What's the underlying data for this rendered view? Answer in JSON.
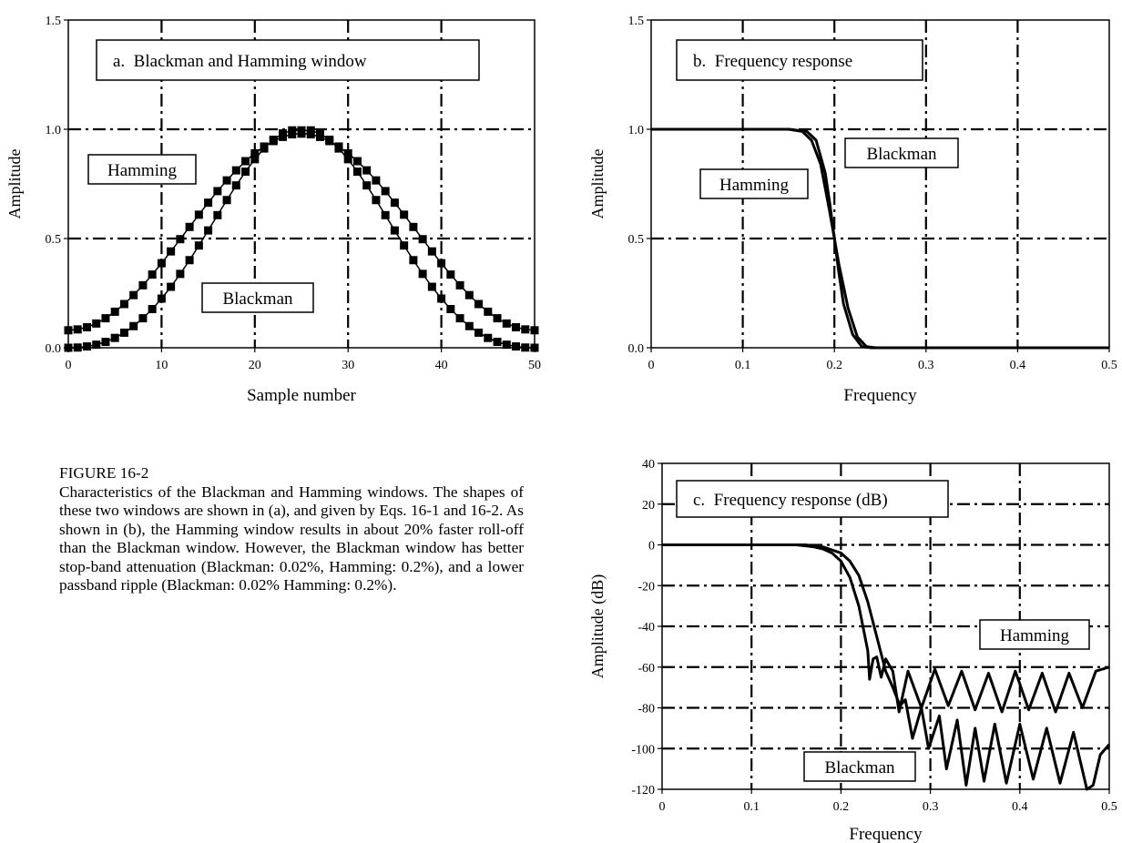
{
  "figure": {
    "number": "FIGURE 16-2",
    "caption": "Characteristics of the Blackman and Hamming windows.  The shapes of these two windows are shown in (a), and given by Eqs. 16-1 and 16-2.  As shown in (b), the Hamming window results in about 20% faster roll-off than the Blackman window.  However, the Blackman window has better stop-band attenuation (Blackman: 0.02%, Hamming: 0.2%), and a lower passband ripple (Blackman: 0.02% Hamming: 0.2%)."
  },
  "chart_data": [
    {
      "id": "a",
      "type": "scatter",
      "title": "a.  Blackman and Hamming window",
      "xlabel": "Sample number",
      "ylabel": "Amplitude",
      "xlim": [
        0,
        50
      ],
      "ylim": [
        0,
        1.5
      ],
      "xticks": [
        "0",
        "10",
        "20",
        "30",
        "40",
        "50"
      ],
      "yticks": [
        "0.0",
        "0.5",
        "1.0",
        "1.5"
      ],
      "grid": true,
      "series": [
        {
          "name": "Hamming",
          "x": [
            0,
            1,
            2,
            3,
            4,
            5,
            6,
            7,
            8,
            9,
            10,
            11,
            12,
            13,
            14,
            15,
            16,
            17,
            18,
            19,
            20,
            21,
            22,
            23,
            24,
            25,
            26,
            27,
            28,
            29,
            30,
            31,
            32,
            33,
            34,
            35,
            36,
            37,
            38,
            39,
            40,
            41,
            42,
            43,
            44,
            45,
            46,
            47,
            48,
            49,
            50
          ],
          "y": [
            0.08,
            0.084,
            0.094,
            0.111,
            0.135,
            0.165,
            0.2,
            0.241,
            0.286,
            0.335,
            0.387,
            0.441,
            0.497,
            0.553,
            0.609,
            0.664,
            0.717,
            0.766,
            0.812,
            0.854,
            0.89,
            0.921,
            0.946,
            0.965,
            0.977,
            0.98,
            0.977,
            0.965,
            0.946,
            0.921,
            0.89,
            0.854,
            0.812,
            0.766,
            0.717,
            0.664,
            0.609,
            0.553,
            0.497,
            0.441,
            0.387,
            0.335,
            0.286,
            0.241,
            0.2,
            0.165,
            0.135,
            0.111,
            0.094,
            0.084,
            0.08
          ]
        },
        {
          "name": "Blackman",
          "x": [
            0,
            1,
            2,
            3,
            4,
            5,
            6,
            7,
            8,
            9,
            10,
            11,
            12,
            13,
            14,
            15,
            16,
            17,
            18,
            19,
            20,
            21,
            22,
            23,
            24,
            25,
            26,
            27,
            28,
            29,
            30,
            31,
            32,
            33,
            34,
            35,
            36,
            37,
            38,
            39,
            40,
            41,
            42,
            43,
            44,
            45,
            46,
            47,
            48,
            49,
            50
          ],
          "y": [
            0.0,
            0.001,
            0.006,
            0.014,
            0.027,
            0.045,
            0.069,
            0.099,
            0.135,
            0.177,
            0.225,
            0.279,
            0.338,
            0.401,
            0.468,
            0.537,
            0.607,
            0.676,
            0.743,
            0.806,
            0.863,
            0.912,
            0.952,
            0.981,
            0.995,
            0.995,
            0.995,
            0.981,
            0.952,
            0.912,
            0.863,
            0.806,
            0.743,
            0.676,
            0.607,
            0.537,
            0.468,
            0.401,
            0.338,
            0.279,
            0.225,
            0.177,
            0.135,
            0.099,
            0.069,
            0.045,
            0.027,
            0.014,
            0.006,
            0.001,
            0.0
          ]
        }
      ]
    },
    {
      "id": "b",
      "type": "line",
      "title": "b.  Frequency response",
      "xlabel": "Frequency",
      "ylabel": "Amplitude",
      "xlim": [
        0,
        0.5
      ],
      "ylim": [
        0,
        1.5
      ],
      "xticks": [
        "0",
        "0.1",
        "0.2",
        "0.3",
        "0.4",
        "0.5"
      ],
      "yticks": [
        "0.0",
        "0.5",
        "1.0",
        "1.5"
      ],
      "grid": true,
      "series": [
        {
          "name": "Hamming",
          "x": [
            0,
            0.1,
            0.15,
            0.17,
            0.18,
            0.19,
            0.195,
            0.2,
            0.205,
            0.21,
            0.22,
            0.23,
            0.24,
            0.3,
            0.4,
            0.5
          ],
          "y": [
            1.0,
            1.0,
            1.0,
            0.99,
            0.95,
            0.8,
            0.66,
            0.5,
            0.34,
            0.2,
            0.06,
            0.005,
            0.0,
            0.0,
            0.0,
            0.0
          ]
        },
        {
          "name": "Blackman",
          "x": [
            0,
            0.1,
            0.15,
            0.165,
            0.175,
            0.185,
            0.195,
            0.2,
            0.205,
            0.215,
            0.225,
            0.235,
            0.245,
            0.3,
            0.4,
            0.5
          ],
          "y": [
            1.0,
            1.0,
            1.0,
            0.99,
            0.95,
            0.84,
            0.62,
            0.5,
            0.38,
            0.18,
            0.05,
            0.005,
            0.0,
            0.0,
            0.0,
            0.0
          ]
        }
      ]
    },
    {
      "id": "c",
      "type": "line",
      "title": "c.  Frequency response (dB)",
      "xlabel": "Frequency",
      "ylabel": "Amplitude (dB)",
      "xlim": [
        0,
        0.5
      ],
      "ylim": [
        -120,
        40
      ],
      "xticks": [
        "0",
        "0.1",
        "0.2",
        "0.3",
        "0.4",
        "0.5"
      ],
      "yticks": [
        "-120",
        "-100",
        "-80",
        "-60",
        "-40",
        "-20",
        "0",
        "20",
        "40"
      ],
      "grid": true,
      "series": [
        {
          "name": "Hamming",
          "x": [
            0,
            0.15,
            0.17,
            0.18,
            0.19,
            0.2,
            0.21,
            0.22,
            0.23,
            0.232,
            0.236,
            0.24,
            0.245,
            0.25,
            0.258,
            0.265,
            0.275,
            0.29,
            0.305,
            0.32,
            0.335,
            0.35,
            0.365,
            0.38,
            0.395,
            0.41,
            0.425,
            0.44,
            0.455,
            0.47,
            0.485,
            0.5
          ],
          "y": [
            0,
            0,
            -1,
            -2,
            -4,
            -8,
            -16,
            -30,
            -52,
            -66,
            -56,
            -55,
            -65,
            -56,
            -62,
            -82,
            -62,
            -80,
            -61,
            -79,
            -62,
            -81,
            -63,
            -82,
            -62,
            -81,
            -63,
            -82,
            -63,
            -80,
            -62,
            -60
          ]
        },
        {
          "name": "Blackman",
          "x": [
            0,
            0.16,
            0.18,
            0.2,
            0.21,
            0.22,
            0.23,
            0.24,
            0.25,
            0.258,
            0.266,
            0.272,
            0.28,
            0.29,
            0.298,
            0.31,
            0.318,
            0.33,
            0.34,
            0.35,
            0.36,
            0.372,
            0.385,
            0.4,
            0.415,
            0.43,
            0.445,
            0.46,
            0.475,
            0.482,
            0.49,
            0.5
          ],
          "y": [
            0,
            0,
            -1,
            -4,
            -8,
            -15,
            -28,
            -45,
            -62,
            -70,
            -79,
            -76,
            -95,
            -80,
            -100,
            -84,
            -110,
            -86,
            -118,
            -90,
            -116,
            -88,
            -117,
            -88,
            -115,
            -90,
            -117,
            -92,
            -120,
            -118,
            -103,
            -98
          ]
        }
      ]
    }
  ]
}
